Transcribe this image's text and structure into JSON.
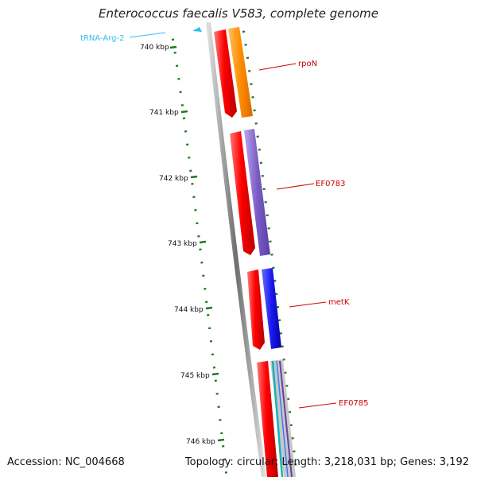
{
  "title": "Enterococcus faecalis V583, complete genome",
  "footer": {
    "accession": "Accession: NC_004668",
    "summary": "Topology: circular; Length: 3,218,031 bp; Genes: 3,192"
  },
  "axis_ticks": [
    "740 kbp",
    "741 kbp",
    "742 kbp",
    "743 kbp",
    "744 kbp",
    "745 kbp",
    "746 kbp"
  ],
  "trna": {
    "label": "tRNA-Arg-2",
    "color": "#33bbee"
  },
  "genes": [
    {
      "label": "rpoN",
      "color": "#ff8c00"
    },
    {
      "label": "EF0783",
      "color": "#7b5cc6"
    },
    {
      "label": "metK",
      "color": "#1a1aee"
    },
    {
      "label": "EF0785",
      "color": "#cccccc"
    }
  ],
  "colors": {
    "cds": "#ff0000",
    "label": "#cc0000",
    "tick": "#1f7a1f",
    "backbone": "#777777"
  }
}
